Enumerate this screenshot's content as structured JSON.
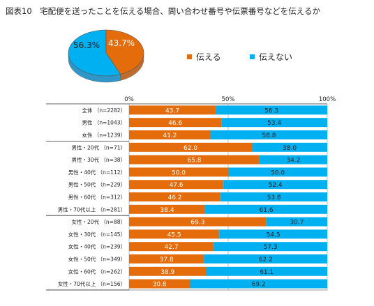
{
  "title": "図表10　宅配便を送ったことを伝える場合、問い合わせ番号や伝票番号などを伝えるか",
  "colors": {
    "tell": "#e46c0a",
    "not_tell": "#00b0f0"
  },
  "pie": {
    "tell": 43.7,
    "not_tell": 56.3,
    "tell_label": "43.7%",
    "not_tell_label": "56.3%"
  },
  "legend": {
    "tell": "伝える",
    "not_tell": "伝えない"
  },
  "chart_data": {
    "type": "bar",
    "stacked": true,
    "orientation": "horizontal",
    "xlim": [
      0,
      100
    ],
    "ticks": [
      "0%",
      "50%",
      "100%"
    ],
    "categories": [
      "全体 （n=2282）",
      "男性 （n=1043）",
      "女性 （n=1239）",
      "男性・20代 （n=71）",
      "男性・30代 （n=38）",
      "男性・40代 （n=112）",
      "男性・50代 （n=229）",
      "男性・60代 （n=312）",
      "男性・70代以上 （n=281）",
      "女性・20代 （n=88）",
      "女性・30代 （n=145）",
      "女性・40代 （n=239）",
      "女性・50代 （n=349）",
      "女性・60代 （n=262）",
      "女性・70代以上 （n=156）"
    ],
    "series": [
      {
        "name": "伝える",
        "values": [
          43.7,
          46.6,
          41.2,
          62.0,
          65.8,
          50.0,
          47.6,
          46.2,
          38.4,
          69.3,
          45.5,
          42.7,
          37.8,
          38.9,
          30.8
        ]
      },
      {
        "name": "伝えない",
        "values": [
          56.3,
          53.4,
          58.8,
          38.0,
          34.2,
          50.0,
          52.4,
          53.8,
          61.6,
          30.7,
          54.5,
          57.3,
          62.2,
          61.1,
          69.2
        ]
      }
    ]
  }
}
